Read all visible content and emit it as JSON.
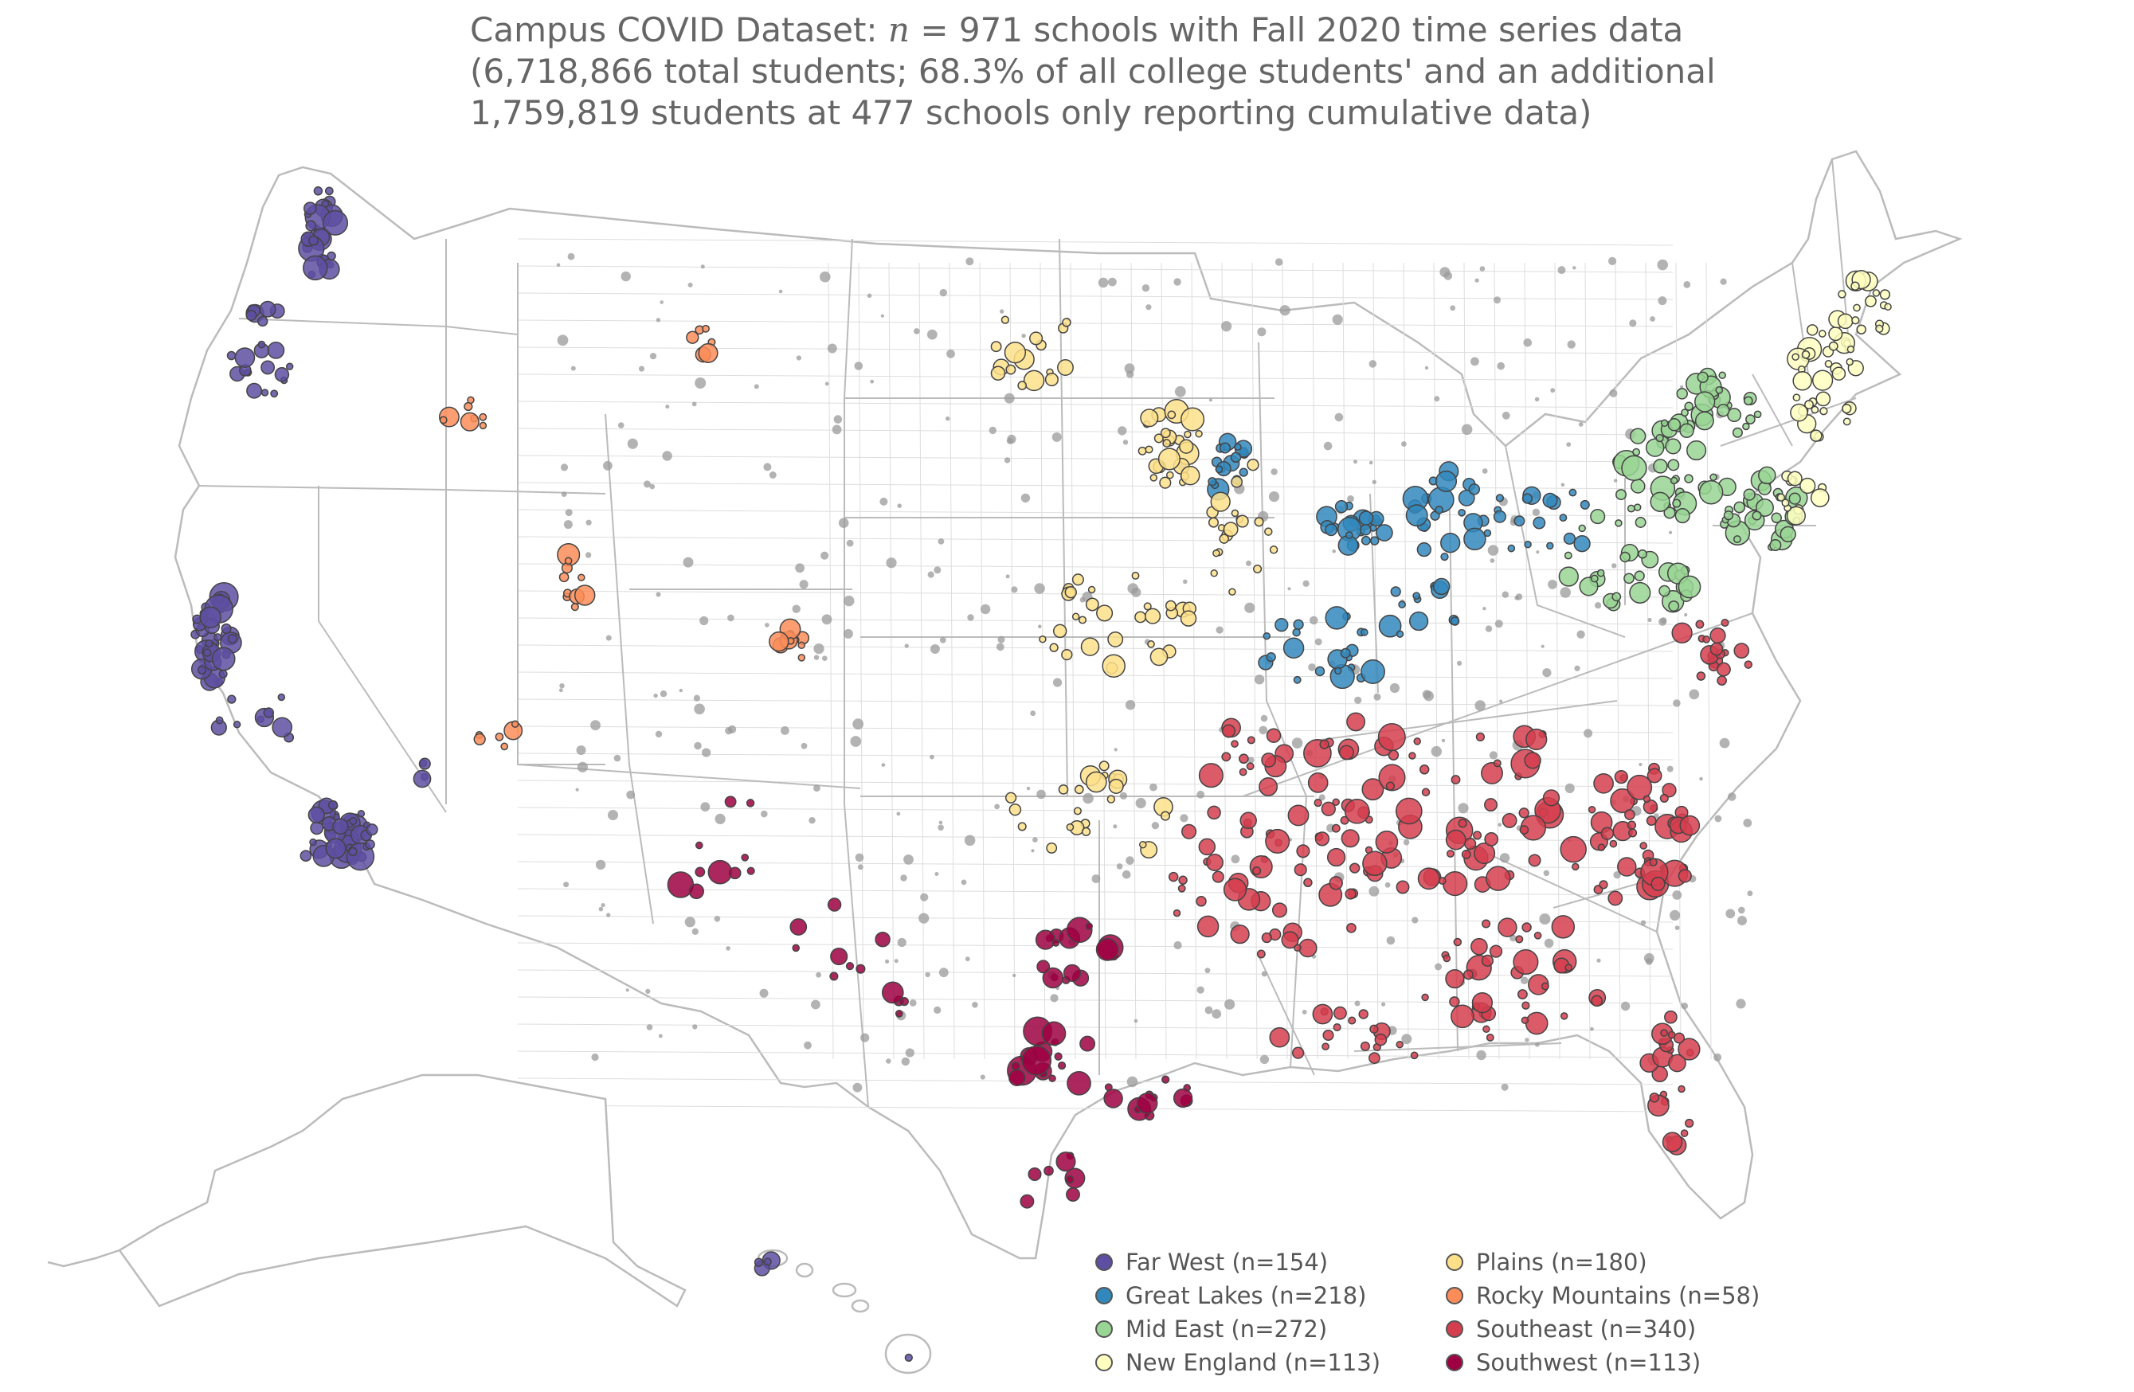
{
  "title": {
    "line1_prefix": "Campus COVID Dataset: ",
    "line1_var": "n",
    "line1_suffix": " = 971 schools with Fall 2020 time series data",
    "line2": "(6,718,866 total students; 68.3% of all college students' and an additional",
    "line3": "1,759,819 students at 477 schools only reporting cumulative data)"
  },
  "legend": {
    "items": [
      {
        "label": "Far West (n=154)",
        "color": "#5e4fa2"
      },
      {
        "label": "Great Lakes (n=218)",
        "color": "#3288bd"
      },
      {
        "label": "Mid East (n=272)",
        "color": "#99d594"
      },
      {
        "label": "New England (n=113)",
        "color": "#ffffbf"
      },
      {
        "label": "Plains (n=180)",
        "color": "#fee08b"
      },
      {
        "label": "Rocky Mountains (n=58)",
        "color": "#fc8d59"
      },
      {
        "label": "Southeast (n=340)",
        "color": "#d53e4f"
      },
      {
        "label": "Southwest (n=113)",
        "color": "#9e0142"
      }
    ]
  },
  "map": {
    "map_type": "dot map",
    "state_border_color": "#bbbbbb",
    "county_border_color": "#dddddd",
    "no_timeseries_dot_color": "#999999"
  }
}
